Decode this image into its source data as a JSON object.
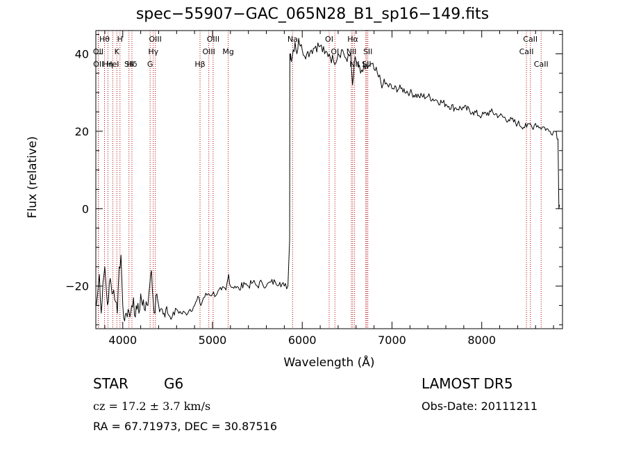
{
  "chart_data": {
    "type": "line",
    "title": "spec−55907−GAC_065N28_B1_sp16−149.fits",
    "xlabel": "Wavelength (Å)",
    "ylabel": "Flux (relative)",
    "xlim": [
      3700,
      8900
    ],
    "ylim": [
      -31,
      46
    ],
    "xticks": [
      4000,
      5000,
      6000,
      7000,
      8000
    ],
    "yticks": [
      -20,
      0,
      20,
      40
    ],
    "grid": false,
    "line_color": "#000000",
    "marker_color": "#b00000",
    "series": [
      {
        "x": [
          3705,
          3720,
          3740,
          3760,
          3780,
          3800,
          3820,
          3840,
          3860,
          3880,
          3900,
          3920,
          3940,
          3960,
          3980,
          4000,
          4020,
          4040,
          4060,
          4080,
          4100,
          4120,
          4140,
          4160,
          4180,
          4200,
          4220,
          4240,
          4260,
          4280,
          4300,
          4320,
          4340,
          4360,
          4380,
          4400,
          4420,
          4440,
          4460,
          4480,
          4500,
          4550,
          4600,
          4650,
          4700,
          4750,
          4800,
          4850,
          4870,
          4900,
          4950,
          5000,
          5050,
          5100,
          5150,
          5180,
          5200,
          5250,
          5300,
          5350,
          5400,
          5450,
          5500,
          5550,
          5600,
          5650,
          5700,
          5750,
          5800,
          5840,
          5860,
          5862,
          5870,
          5880,
          5900,
          5920,
          5940,
          5960,
          5980,
          6000,
          6050,
          6100,
          6150,
          6200,
          6250,
          6300,
          6350,
          6400,
          6450,
          6500,
          6540,
          6560,
          6580,
          6600,
          6650,
          6700,
          6750,
          6800,
          6850,
          6900,
          6950,
          7000,
          7100,
          7200,
          7300,
          7400,
          7500,
          7600,
          7700,
          7800,
          7900,
          8000,
          8100,
          8200,
          8300,
          8400,
          8500,
          8540,
          8560,
          8600,
          8650,
          8700,
          8750,
          8800,
          8830,
          8850,
          8860,
          8870
        ],
        "y": [
          -25,
          -22,
          -17,
          -27,
          -19,
          -15,
          -22,
          -24,
          -18,
          -22,
          -21,
          -24,
          -27,
          -15,
          -12,
          -25,
          -29,
          -27,
          -26,
          -28,
          -25,
          -23,
          -28,
          -26,
          -27,
          -22,
          -25,
          -26,
          -24,
          -25,
          -20,
          -16,
          -24,
          -27,
          -22,
          -25,
          -26,
          -26,
          -27,
          -26,
          -27,
          -28,
          -26,
          -27,
          -27,
          -26,
          -25,
          -23,
          -25,
          -23,
          -22,
          -22,
          -22,
          -21,
          -21,
          -17,
          -20,
          -20,
          -21,
          -19,
          -20,
          -19,
          -20,
          -19,
          -20,
          -19,
          -19,
          -19,
          -20,
          -20,
          -8,
          40,
          40,
          38,
          41,
          43,
          40,
          44,
          42,
          41,
          40,
          41,
          42,
          42,
          40,
          40,
          38,
          40,
          41,
          38,
          40,
          32,
          38,
          38,
          35,
          36,
          37,
          36,
          34,
          32,
          32,
          31,
          31,
          30,
          29,
          29,
          28,
          27,
          26,
          26,
          25,
          24,
          25,
          24,
          23,
          22,
          21,
          22,
          21,
          22,
          21,
          21,
          20,
          20,
          20,
          18,
          0,
          1
        ]
      }
    ],
    "lines": [
      {
        "label": "Hθ",
        "x": 3797
      },
      {
        "label": "OII",
        "x": 3727
      },
      {
        "label": "OII",
        "x": 3729
      },
      {
        "label": "Hη",
        "x": 3835
      },
      {
        "label": "K",
        "x": 3934
      },
      {
        "label": "HeI",
        "x": 3889
      },
      {
        "label": "H",
        "x": 3969
      },
      {
        "label": "Hδ",
        "x": 4102
      },
      {
        "label": "SII",
        "x": 4069
      },
      {
        "label": "OIII",
        "x": 4363
      },
      {
        "label": "Hγ",
        "x": 4340
      },
      {
        "label": "G",
        "x": 4305
      },
      {
        "label": "OIII",
        "x": 5007
      },
      {
        "label": "OIII",
        "x": 4959
      },
      {
        "label": "Hβ",
        "x": 4861
      },
      {
        "label": "Mg",
        "x": 5175
      },
      {
        "label": "Na",
        "x": 5893
      },
      {
        "label": "OI",
        "x": 6300
      },
      {
        "label": "OI",
        "x": 6364
      },
      {
        "label": "Hα",
        "x": 6563
      },
      {
        "label": "NII",
        "x": 6548
      },
      {
        "label": "NII",
        "x": 6583
      },
      {
        "label": "SII",
        "x": 6717
      },
      {
        "label": "Li",
        "x": 6708
      },
      {
        "label": "SII",
        "x": 6731
      },
      {
        "label": "CaII",
        "x": 8542
      },
      {
        "label": "CaII",
        "x": 8498
      },
      {
        "label": "CaII",
        "x": 8662
      }
    ]
  },
  "info": {
    "class": "STAR",
    "subclass": "G6",
    "survey": "LAMOST DR5",
    "cz": "cz = 17.2 ± 3.7 km/s",
    "obs_date": "Obs-Date: 20111211",
    "radec": "RA =  67.71973, DEC =  30.87516"
  }
}
